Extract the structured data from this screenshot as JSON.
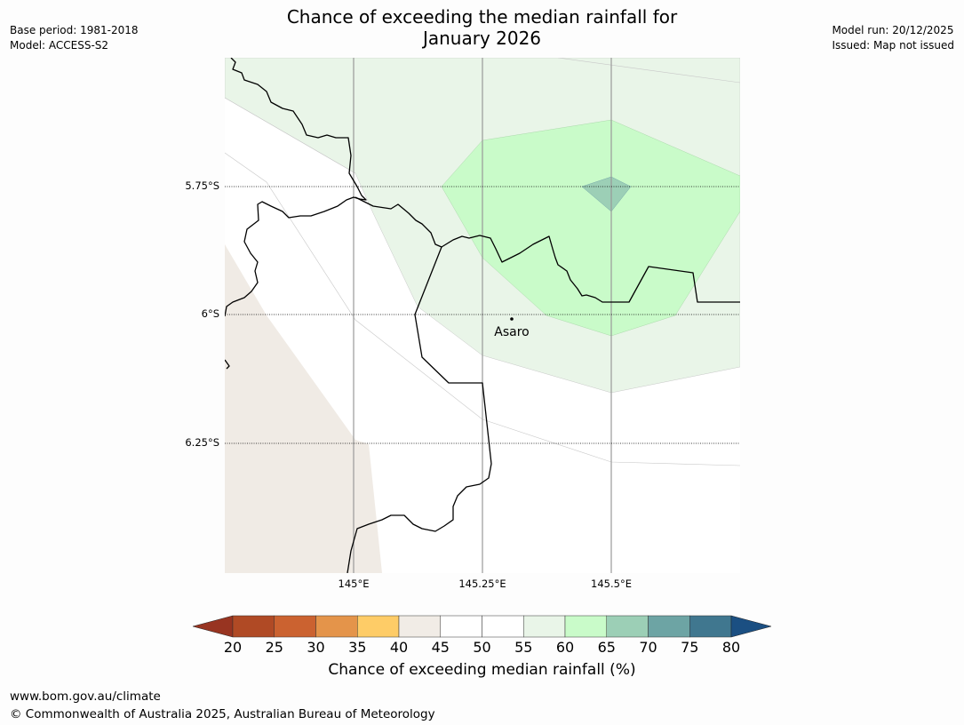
{
  "header": {
    "title_line1": "Chance of exceeding the median rainfall for",
    "title_line2": "January 2026",
    "base_period": "Base period: 1981-2018",
    "model": "Model: ACCESS-S2",
    "model_run": "Model run: 20/12/2025",
    "issued": "Issued: Map not issued"
  },
  "map": {
    "latitudes": [
      "5.75°S",
      "6°S",
      "6.25°S"
    ],
    "longitudes": [
      "145°E",
      "145.25°E",
      "145.5°E"
    ],
    "place_label": "Asaro",
    "zone_colors": {
      "lt40": "#f0ebe5",
      "p55_60": "#e9f5e8",
      "p60_65": "#c9fbc9",
      "p65_70": "#9ccfb6"
    }
  },
  "colorbar": {
    "title": "Chance of exceeding median rainfall (%)",
    "tick_labels": [
      "20",
      "25",
      "30",
      "35",
      "40",
      "45",
      "50",
      "55",
      "60",
      "65",
      "70",
      "75",
      "80"
    ],
    "low_color": "#983421",
    "high_color": "#1b4f82",
    "colors": [
      "#b04a25",
      "#cb6230",
      "#e4944a",
      "#fecc67",
      "#f1ece6",
      "#ffffff",
      "#ffffff",
      "#e9f5e8",
      "#c9fbc9",
      "#9ccfb6",
      "#6da4a4",
      "#40778f"
    ]
  },
  "footer": {
    "url": "www.bom.gov.au/climate",
    "copyright": "© Commonwealth of Australia 2025, Australian Bureau of Meteorology"
  }
}
